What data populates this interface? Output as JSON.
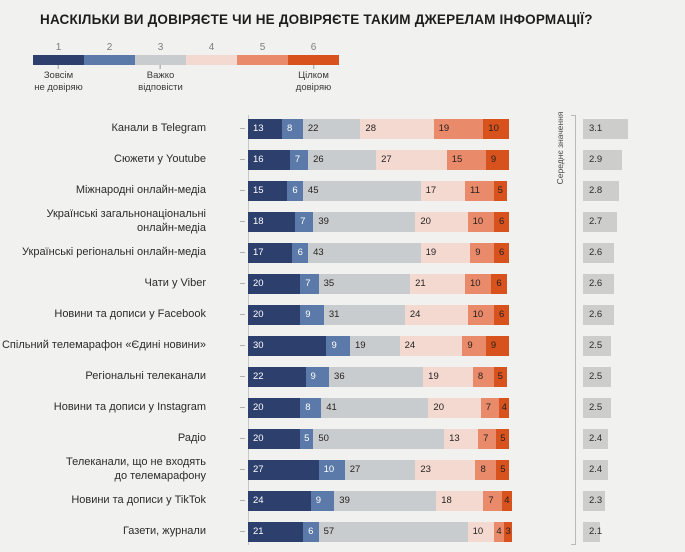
{
  "title": "НАСКІЛЬКИ ВИ ДОВІРЯЄТЕ ЧИ НЕ ДОВІРЯЄТЕ ТАКИМ ДЖЕРЕЛАМ ІНФОРМАЦІЇ?",
  "avg_header": "Середнє значення",
  "legend": {
    "scale": [
      {
        "value": "1",
        "color": "#2c3f6d"
      },
      {
        "value": "2",
        "color": "#5b7aa9"
      },
      {
        "value": "3",
        "color": "#c9ccce"
      },
      {
        "value": "4",
        "color": "#f4d9d1"
      },
      {
        "value": "5",
        "color": "#e98a6b"
      },
      {
        "value": "6",
        "color": "#d7521d"
      }
    ],
    "anchors": [
      {
        "segment_index": 0,
        "label": "Зовсім\nне довіряю"
      },
      {
        "segment_index": 2,
        "label": "Важко\nвідповісти"
      },
      {
        "segment_index": 5,
        "label": "Цілком\nдовіряю"
      }
    ]
  },
  "chart_data": {
    "type": "bar",
    "orientation": "horizontal-stacked",
    "title": "НАСКІЛЬКИ ВИ ДОВІРЯЄТЕ ЧИ НЕ ДОВІРЯЄТЕ ТАКИМ ДЖЕРЕЛАМ ІНФОРМАЦІЇ?",
    "value_scale": [
      1,
      6
    ],
    "legend_position": "top-left",
    "grid": false,
    "categories": [
      "Канали в Telegram",
      "Сюжети у Youtube",
      "Міжнародні онлайн-медіа",
      "Українські загальнонаціональні\nонлайн-медіа",
      "Українські регіональні онлайн-медіа",
      "Чати у Viber",
      "Новини та дописи у Facebook",
      "Спільний телемарафон «Єдині новини»",
      "Регіональні телеканали",
      "Новини та дописи у Instagram",
      "Радіо",
      "Телеканали, що не входять\nдо телемарафону",
      "Новини та дописи у TikTok",
      "Газети, журнали"
    ],
    "series": [
      {
        "name": "1 — Зовсім не довіряю",
        "color": "#2c3f6d",
        "values": [
          13,
          16,
          15,
          18,
          17,
          20,
          20,
          30,
          22,
          20,
          20,
          27,
          24,
          21
        ]
      },
      {
        "name": "2",
        "color": "#5b7aa9",
        "values": [
          8,
          7,
          6,
          7,
          6,
          7,
          9,
          9,
          9,
          8,
          5,
          10,
          9,
          6
        ]
      },
      {
        "name": "3 — Важко відповісти",
        "color": "#c9ccce",
        "values": [
          22,
          26,
          45,
          39,
          43,
          35,
          31,
          19,
          36,
          41,
          50,
          27,
          39,
          57
        ]
      },
      {
        "name": "4",
        "color": "#f4d9d1",
        "values": [
          28,
          27,
          17,
          20,
          19,
          21,
          24,
          24,
          19,
          20,
          13,
          23,
          18,
          10
        ]
      },
      {
        "name": "5",
        "color": "#e98a6b",
        "values": [
          19,
          15,
          11,
          10,
          9,
          10,
          10,
          9,
          8,
          7,
          7,
          8,
          7,
          4
        ]
      },
      {
        "name": "6 — Цілком довіряю",
        "color": "#d7521d",
        "values": [
          10,
          9,
          5,
          6,
          6,
          6,
          6,
          9,
          5,
          4,
          5,
          5,
          4,
          3
        ]
      }
    ],
    "averages": {
      "label": "Середнє значення",
      "values": [
        "3.1",
        "2.9",
        "2.8",
        "2.7",
        "2.6",
        "2.6",
        "2.6",
        "2.5",
        "2.5",
        "2.5",
        "2.4",
        "2.4",
        "2.3",
        "2.1"
      ]
    }
  }
}
